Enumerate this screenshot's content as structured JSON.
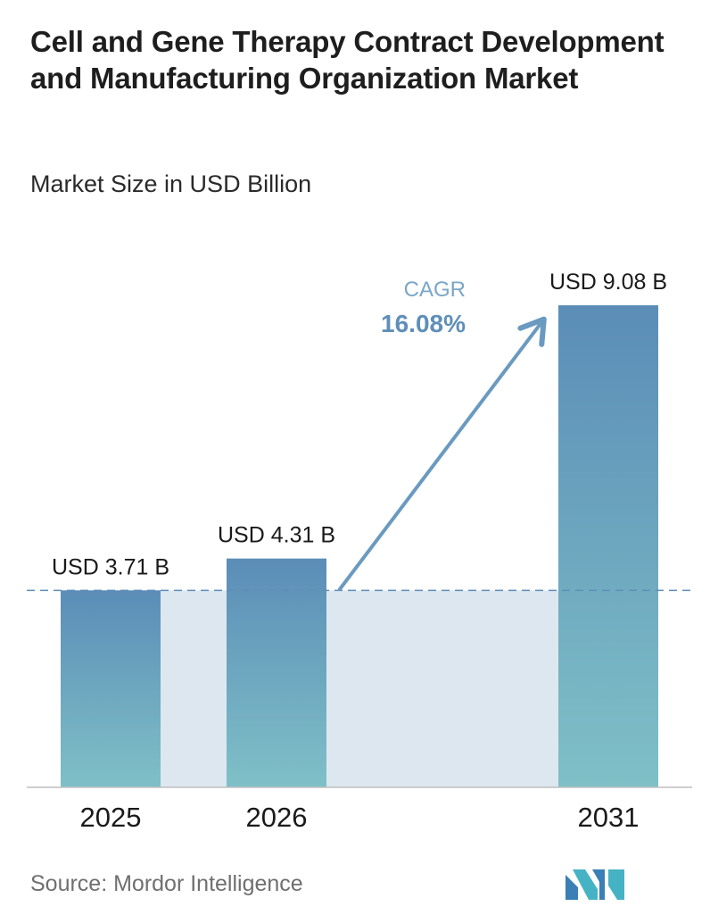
{
  "title": "Cell and Gene Therapy Contract Development and Manufacturing Organization Market",
  "subtitle": "Market Size in USD Billion",
  "source": "Source: Mordor Intelligence",
  "cagr": {
    "label": "CAGR",
    "value": "16.08%"
  },
  "colors": {
    "bar_top": "#5b8db7",
    "bar_bottom": "#7fc0c7",
    "shade": "#dde7f0",
    "arrow": "#6a9ac0",
    "cagr_label": "#7aa6c8",
    "cagr_value": "#5f8fb8",
    "dashed_line": "#5f8fb8",
    "baseline": "#bfbfbf"
  },
  "chart_data": {
    "type": "bar",
    "categories": [
      "2025",
      "2026",
      "2031"
    ],
    "values": [
      3.71,
      4.31,
      9.08
    ],
    "data_labels": [
      "USD 3.71 B",
      "USD 4.31 B",
      "USD 9.08 B"
    ],
    "ylabel": "",
    "ylim": [
      0,
      9.08
    ],
    "grid": false,
    "legend": "none"
  }
}
